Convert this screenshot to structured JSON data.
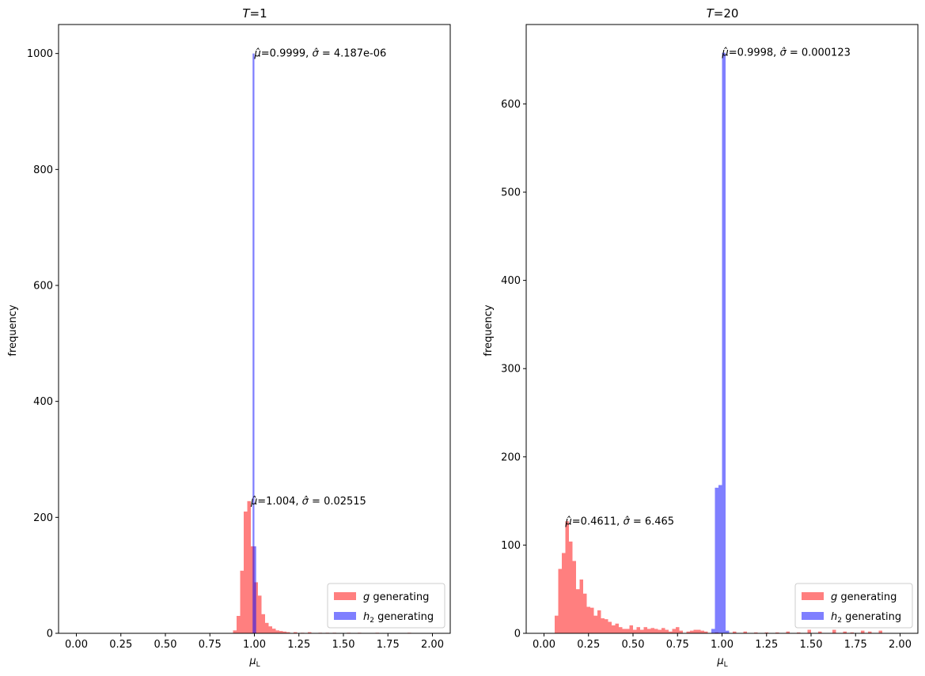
{
  "chart_data": [
    {
      "type": "histogram",
      "title": "T=1",
      "xlabel": "μL",
      "ylabel": "frequency",
      "xlim": [
        -0.1,
        2.1
      ],
      "ylim": [
        0,
        1050
      ],
      "xticks": [
        0.0,
        0.25,
        0.5,
        0.75,
        1.0,
        1.25,
        1.5,
        1.75,
        2.0
      ],
      "xtick_labels": [
        "0.00",
        "0.25",
        "0.50",
        "0.75",
        "1.00",
        "1.25",
        "1.50",
        "1.75",
        "2.00"
      ],
      "yticks": [
        0,
        200,
        400,
        600,
        800,
        1000
      ],
      "ytick_labels": [
        "0",
        "200",
        "400",
        "600",
        "800",
        "1000"
      ],
      "legend_position": "lower-right",
      "legend": [
        {
          "label_pre": "g",
          "label_post": " generating",
          "color": "#ff0000",
          "alpha": 0.5
        },
        {
          "label_pre": "h",
          "label_sub": "2",
          "label_post": " generating",
          "color": "#0000ff",
          "alpha": 0.5
        }
      ],
      "series": [
        {
          "name": "g generating",
          "color": "#ff0000",
          "alpha": 0.5,
          "bins": [
            {
              "x0": 0.88,
              "x1": 0.9,
              "y": 5
            },
            {
              "x0": 0.9,
              "x1": 0.92,
              "y": 30
            },
            {
              "x0": 0.92,
              "x1": 0.94,
              "y": 108
            },
            {
              "x0": 0.94,
              "x1": 0.96,
              "y": 210
            },
            {
              "x0": 0.96,
              "x1": 0.98,
              "y": 228
            },
            {
              "x0": 0.98,
              "x1": 1.0,
              "y": 150
            },
            {
              "x0": 1.0,
              "x1": 1.02,
              "y": 88
            },
            {
              "x0": 1.02,
              "x1": 1.04,
              "y": 65
            },
            {
              "x0": 1.04,
              "x1": 1.06,
              "y": 33
            },
            {
              "x0": 1.06,
              "x1": 1.08,
              "y": 18
            },
            {
              "x0": 1.08,
              "x1": 1.1,
              "y": 12
            },
            {
              "x0": 1.1,
              "x1": 1.12,
              "y": 8
            },
            {
              "x0": 1.12,
              "x1": 1.14,
              "y": 5
            },
            {
              "x0": 1.14,
              "x1": 1.16,
              "y": 4
            },
            {
              "x0": 1.16,
              "x1": 1.18,
              "y": 3
            },
            {
              "x0": 1.18,
              "x1": 1.2,
              "y": 2
            },
            {
              "x0": 1.22,
              "x1": 1.24,
              "y": 2
            },
            {
              "x0": 1.26,
              "x1": 1.28,
              "y": 1
            },
            {
              "x0": 1.3,
              "x1": 1.32,
              "y": 2
            },
            {
              "x0": 1.36,
              "x1": 1.38,
              "y": 1
            },
            {
              "x0": 1.4,
              "x1": 1.42,
              "y": 1
            },
            {
              "x0": 1.44,
              "x1": 1.46,
              "y": 1
            },
            {
              "x0": 1.52,
              "x1": 1.54,
              "y": 1
            },
            {
              "x0": 1.58,
              "x1": 1.6,
              "y": 1
            },
            {
              "x0": 1.68,
              "x1": 1.7,
              "y": 1
            },
            {
              "x0": 1.86,
              "x1": 1.88,
              "y": 1
            }
          ]
        },
        {
          "name": "h2 generating",
          "color": "#0000ff",
          "alpha": 0.5,
          "bins": [
            {
              "x0": 0.99,
              "x1": 1.0,
              "y": 1000
            },
            {
              "x0": 1.0,
              "x1": 1.01,
              "y": 150
            }
          ]
        }
      ],
      "annotations": [
        {
          "mu": "0.9999",
          "sigma": "4.187e-06",
          "x": 1.0,
          "y": 1000
        },
        {
          "mu": "1.004",
          "sigma": "0.02515",
          "x": 0.98,
          "y": 228
        }
      ]
    },
    {
      "type": "histogram",
      "title": "T=20",
      "xlabel": "μL",
      "ylabel": "frequency",
      "xlim": [
        -0.1,
        2.1
      ],
      "ylim": [
        0,
        690
      ],
      "xticks": [
        0.0,
        0.25,
        0.5,
        0.75,
        1.0,
        1.25,
        1.5,
        1.75,
        2.0
      ],
      "xtick_labels": [
        "0.00",
        "0.25",
        "0.50",
        "0.75",
        "1.00",
        "1.25",
        "1.50",
        "1.75",
        "2.00"
      ],
      "yticks": [
        0,
        100,
        200,
        300,
        400,
        500,
        600
      ],
      "ytick_labels": [
        "0",
        "100",
        "200",
        "300",
        "400",
        "500",
        "600"
      ],
      "legend_position": "lower-right",
      "legend": [
        {
          "label_pre": "g",
          "label_post": " generating",
          "color": "#ff0000",
          "alpha": 0.5
        },
        {
          "label_pre": "h",
          "label_sub": "2",
          "label_post": " generating",
          "color": "#0000ff",
          "alpha": 0.5
        }
      ],
      "series": [
        {
          "name": "g generating",
          "color": "#ff0000",
          "alpha": 0.5,
          "bins": [
            {
              "x0": 0.04,
              "x1": 0.06,
              "y": 0
            },
            {
              "x0": 0.06,
              "x1": 0.08,
              "y": 20
            },
            {
              "x0": 0.08,
              "x1": 0.1,
              "y": 73
            },
            {
              "x0": 0.1,
              "x1": 0.12,
              "y": 91
            },
            {
              "x0": 0.12,
              "x1": 0.14,
              "y": 127
            },
            {
              "x0": 0.14,
              "x1": 0.16,
              "y": 104
            },
            {
              "x0": 0.16,
              "x1": 0.18,
              "y": 82
            },
            {
              "x0": 0.18,
              "x1": 0.2,
              "y": 50
            },
            {
              "x0": 0.2,
              "x1": 0.22,
              "y": 61
            },
            {
              "x0": 0.22,
              "x1": 0.24,
              "y": 45
            },
            {
              "x0": 0.24,
              "x1": 0.26,
              "y": 30
            },
            {
              "x0": 0.26,
              "x1": 0.28,
              "y": 29
            },
            {
              "x0": 0.28,
              "x1": 0.3,
              "y": 20
            },
            {
              "x0": 0.3,
              "x1": 0.32,
              "y": 26
            },
            {
              "x0": 0.32,
              "x1": 0.34,
              "y": 17
            },
            {
              "x0": 0.34,
              "x1": 0.36,
              "y": 16
            },
            {
              "x0": 0.36,
              "x1": 0.38,
              "y": 13
            },
            {
              "x0": 0.38,
              "x1": 0.4,
              "y": 9
            },
            {
              "x0": 0.4,
              "x1": 0.42,
              "y": 11
            },
            {
              "x0": 0.42,
              "x1": 0.44,
              "y": 7
            },
            {
              "x0": 0.44,
              "x1": 0.46,
              "y": 5
            },
            {
              "x0": 0.46,
              "x1": 0.48,
              "y": 5
            },
            {
              "x0": 0.48,
              "x1": 0.5,
              "y": 9
            },
            {
              "x0": 0.5,
              "x1": 0.52,
              "y": 4
            },
            {
              "x0": 0.52,
              "x1": 0.54,
              "y": 7
            },
            {
              "x0": 0.54,
              "x1": 0.56,
              "y": 4
            },
            {
              "x0": 0.56,
              "x1": 0.58,
              "y": 7
            },
            {
              "x0": 0.58,
              "x1": 0.6,
              "y": 5
            },
            {
              "x0": 0.6,
              "x1": 0.62,
              "y": 6
            },
            {
              "x0": 0.62,
              "x1": 0.64,
              "y": 5
            },
            {
              "x0": 0.64,
              "x1": 0.66,
              "y": 4
            },
            {
              "x0": 0.66,
              "x1": 0.68,
              "y": 6
            },
            {
              "x0": 0.68,
              "x1": 0.7,
              "y": 4
            },
            {
              "x0": 0.7,
              "x1": 0.72,
              "y": 2
            },
            {
              "x0": 0.72,
              "x1": 0.74,
              "y": 5
            },
            {
              "x0": 0.74,
              "x1": 0.76,
              "y": 7
            },
            {
              "x0": 0.76,
              "x1": 0.78,
              "y": 3
            },
            {
              "x0": 0.8,
              "x1": 0.82,
              "y": 2
            },
            {
              "x0": 0.82,
              "x1": 0.84,
              "y": 3
            },
            {
              "x0": 0.84,
              "x1": 0.86,
              "y": 4
            },
            {
              "x0": 0.86,
              "x1": 0.88,
              "y": 4
            },
            {
              "x0": 0.88,
              "x1": 0.9,
              "y": 3
            },
            {
              "x0": 0.9,
              "x1": 0.92,
              "y": 2
            },
            {
              "x0": 0.96,
              "x1": 0.98,
              "y": 1
            },
            {
              "x0": 1.06,
              "x1": 1.08,
              "y": 2
            },
            {
              "x0": 1.12,
              "x1": 1.14,
              "y": 2
            },
            {
              "x0": 1.18,
              "x1": 1.2,
              "y": 1
            },
            {
              "x0": 1.24,
              "x1": 1.26,
              "y": 1
            },
            {
              "x0": 1.3,
              "x1": 1.32,
              "y": 1
            },
            {
              "x0": 1.36,
              "x1": 1.38,
              "y": 2
            },
            {
              "x0": 1.42,
              "x1": 1.44,
              "y": 1
            },
            {
              "x0": 1.48,
              "x1": 1.5,
              "y": 4
            },
            {
              "x0": 1.54,
              "x1": 1.56,
              "y": 2
            },
            {
              "x0": 1.62,
              "x1": 1.64,
              "y": 4
            },
            {
              "x0": 1.68,
              "x1": 1.7,
              "y": 2
            },
            {
              "x0": 1.72,
              "x1": 1.74,
              "y": 1
            },
            {
              "x0": 1.78,
              "x1": 1.8,
              "y": 3
            },
            {
              "x0": 1.82,
              "x1": 1.84,
              "y": 2
            },
            {
              "x0": 1.88,
              "x1": 1.9,
              "y": 3
            }
          ]
        },
        {
          "name": "h2 generating",
          "color": "#0000ff",
          "alpha": 0.5,
          "bins": [
            {
              "x0": 0.94,
              "x1": 0.96,
              "y": 5
            },
            {
              "x0": 0.96,
              "x1": 0.98,
              "y": 165
            },
            {
              "x0": 0.98,
              "x1": 1.0,
              "y": 168
            },
            {
              "x0": 1.0,
              "x1": 1.02,
              "y": 658
            },
            {
              "x0": 1.02,
              "x1": 1.04,
              "y": 3
            }
          ]
        }
      ],
      "annotations": [
        {
          "mu": "0.9998",
          "sigma": "0.000123",
          "x": 1.0,
          "y": 658
        },
        {
          "mu": "0.4611",
          "sigma": "6.465",
          "x": 0.12,
          "y": 127
        }
      ]
    }
  ]
}
